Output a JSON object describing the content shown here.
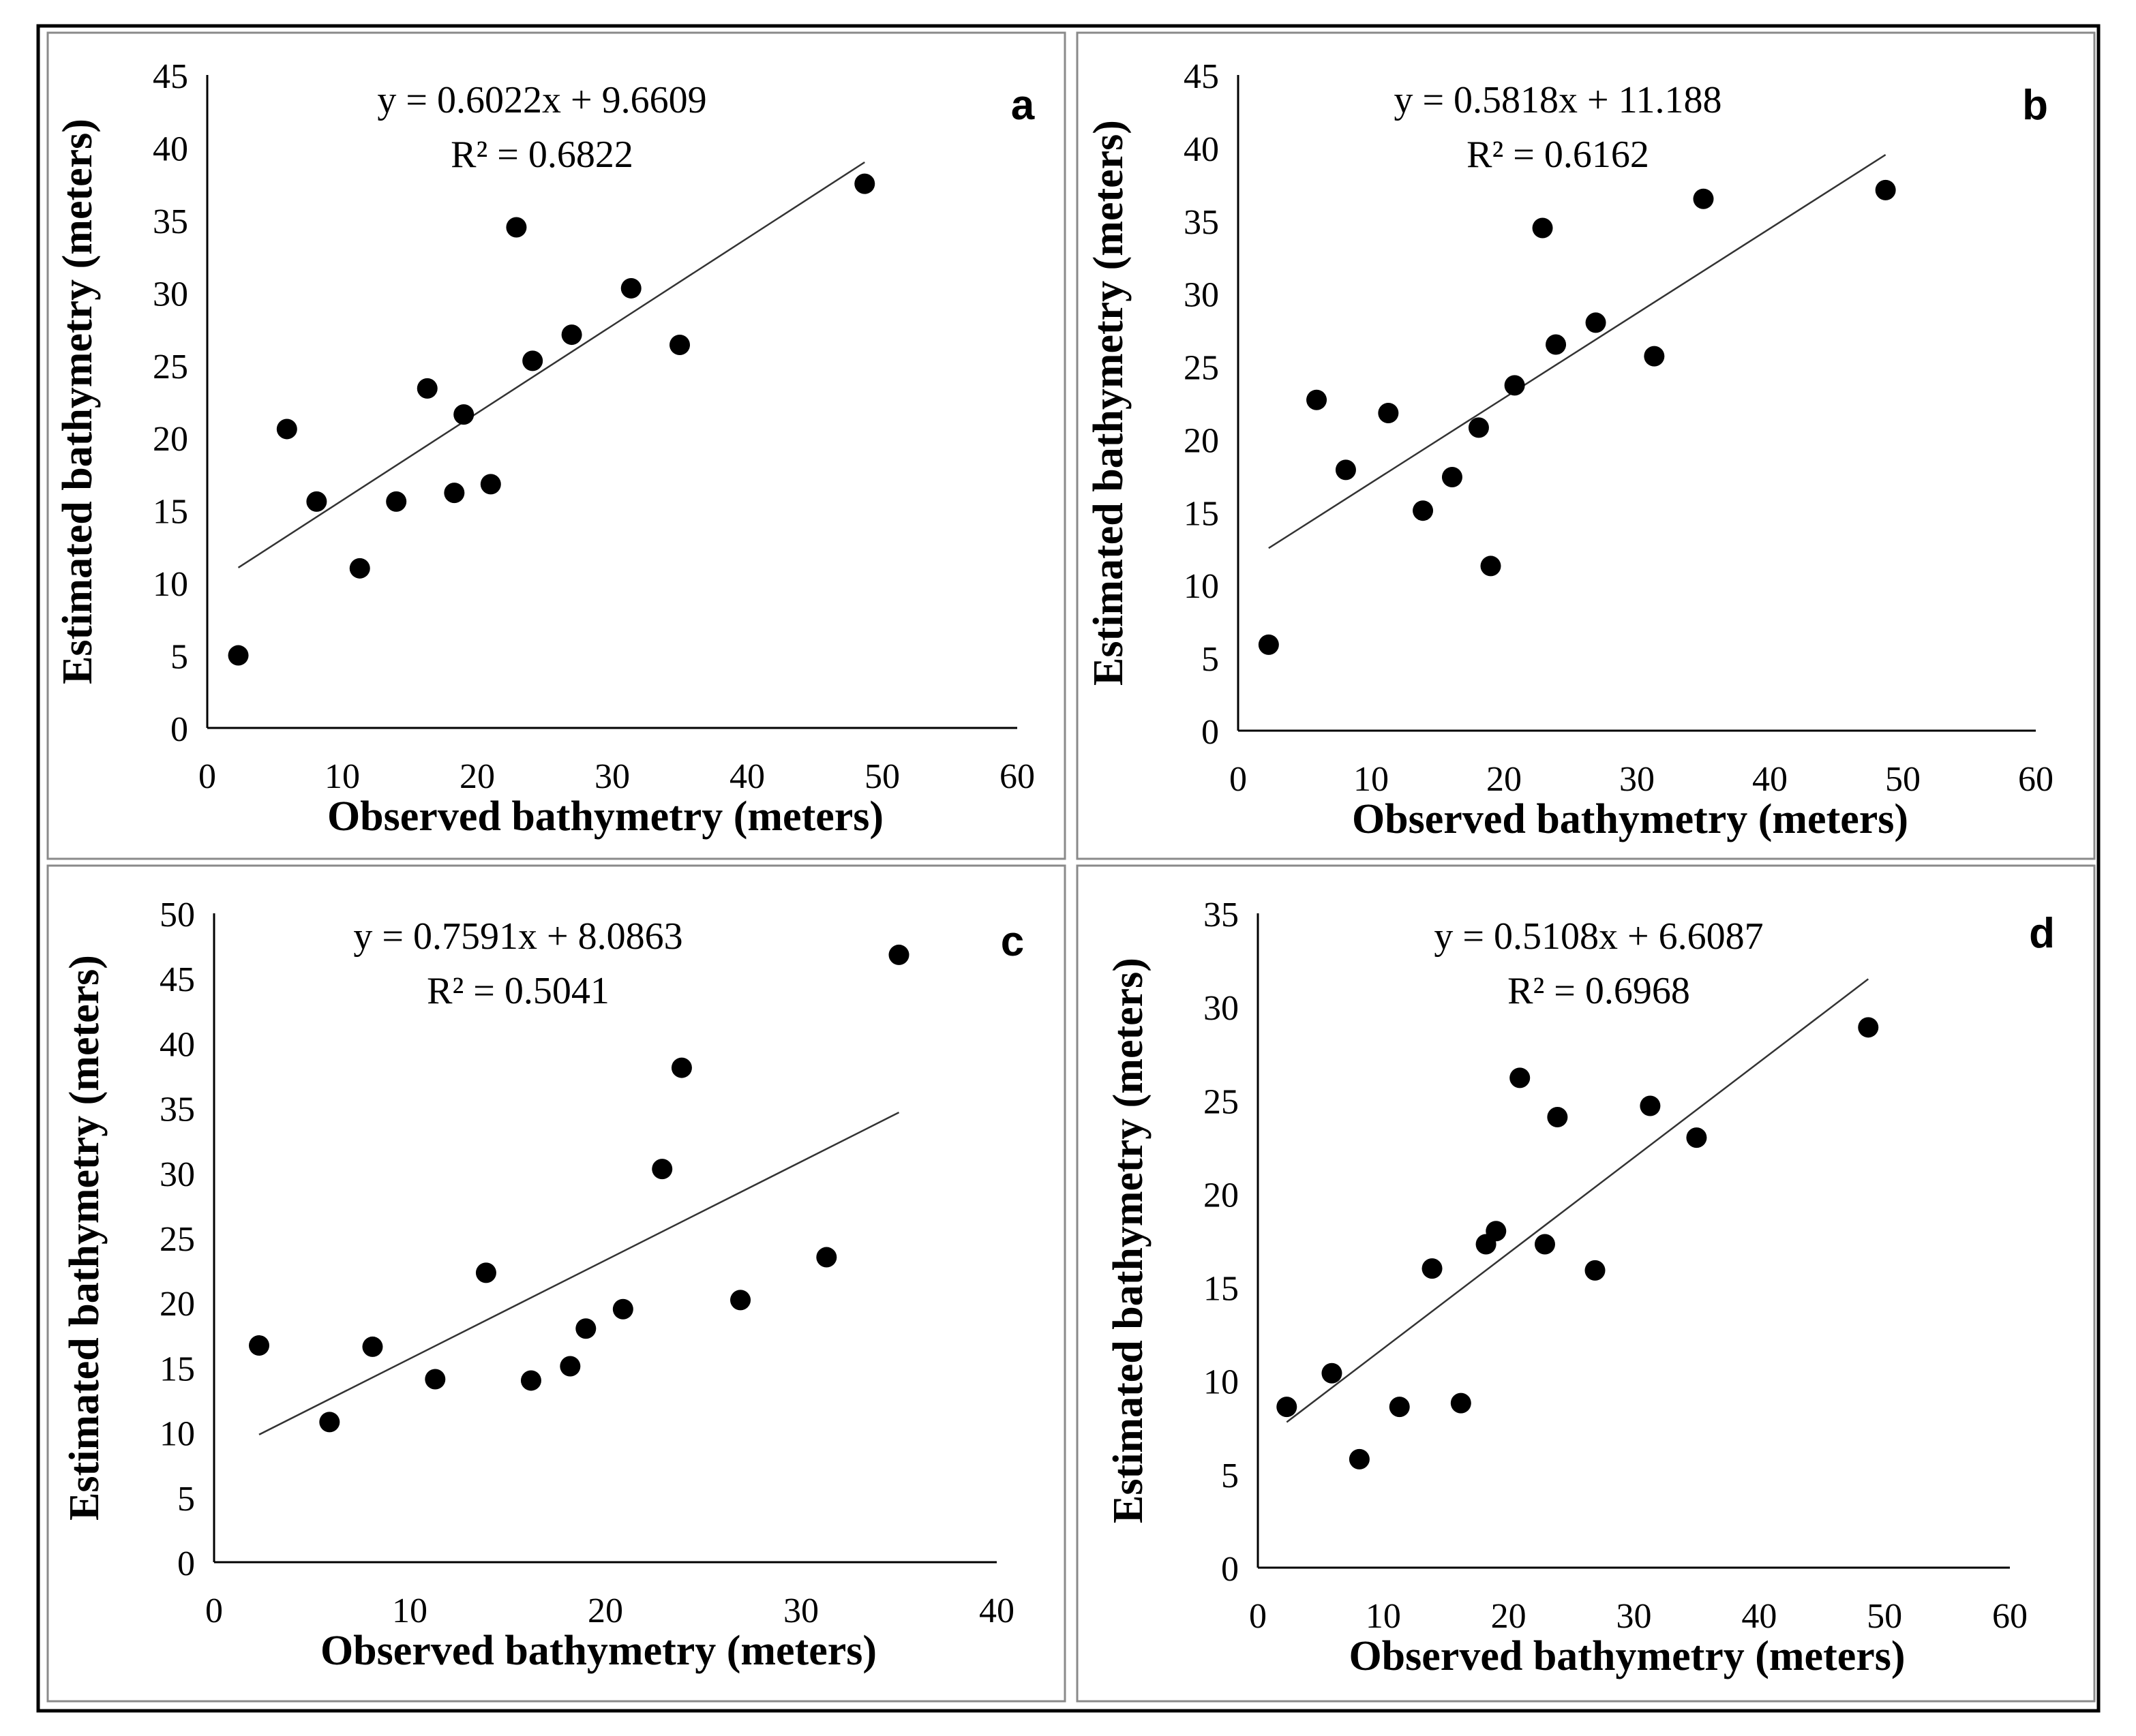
{
  "figure": {
    "panels": [
      "a",
      "b",
      "c",
      "d"
    ]
  },
  "chart_data": [
    {
      "panel": "a",
      "type": "scatter",
      "xlabel": "Observed bathymetry (meters)",
      "ylabel": "Estimated bathymetry (meters)",
      "xlim": [
        0,
        60
      ],
      "ylim": [
        0,
        45
      ],
      "xticks": [
        0,
        10,
        20,
        30,
        40,
        50,
        60
      ],
      "yticks": [
        0,
        5,
        10,
        15,
        20,
        25,
        30,
        35,
        40,
        45
      ],
      "equation": "y = 0.6022x + 9.6609",
      "r2": "R² = 0.6822",
      "trendline": {
        "slope": 0.6022,
        "intercept": 9.6609,
        "x_range": [
          2.3,
          48.7
        ]
      },
      "points": [
        {
          "x": 2.3,
          "y": 5.0
        },
        {
          "x": 5.9,
          "y": 20.6
        },
        {
          "x": 8.1,
          "y": 15.6
        },
        {
          "x": 11.3,
          "y": 11.0
        },
        {
          "x": 14.0,
          "y": 15.6
        },
        {
          "x": 16.3,
          "y": 23.4
        },
        {
          "x": 18.3,
          "y": 16.2
        },
        {
          "x": 19.0,
          "y": 21.6
        },
        {
          "x": 21.0,
          "y": 16.8
        },
        {
          "x": 22.9,
          "y": 34.5
        },
        {
          "x": 24.1,
          "y": 25.3
        },
        {
          "x": 27.0,
          "y": 27.1
        },
        {
          "x": 31.4,
          "y": 30.3
        },
        {
          "x": 35.0,
          "y": 26.4
        },
        {
          "x": 48.7,
          "y": 37.5
        }
      ]
    },
    {
      "panel": "b",
      "type": "scatter",
      "xlabel": "Observed bathymetry (meters)",
      "ylabel": "Estimated bathymetry (meters)",
      "xlim": [
        0,
        60
      ],
      "ylim": [
        0,
        45
      ],
      "xticks": [
        0,
        10,
        20,
        30,
        40,
        50,
        60
      ],
      "yticks": [
        0,
        5,
        10,
        15,
        20,
        25,
        30,
        35,
        40,
        45
      ],
      "equation": "y = 0.5818x + 11.188",
      "r2": "R² = 0.6162",
      "trendline": {
        "slope": 0.5818,
        "intercept": 11.188,
        "x_range": [
          2.3,
          48.7
        ]
      },
      "points": [
        {
          "x": 2.3,
          "y": 5.9
        },
        {
          "x": 5.9,
          "y": 22.7
        },
        {
          "x": 8.1,
          "y": 17.9
        },
        {
          "x": 11.3,
          "y": 21.8
        },
        {
          "x": 13.9,
          "y": 15.1
        },
        {
          "x": 16.1,
          "y": 17.4
        },
        {
          "x": 18.1,
          "y": 20.8
        },
        {
          "x": 19.0,
          "y": 11.3
        },
        {
          "x": 20.8,
          "y": 23.7
        },
        {
          "x": 22.9,
          "y": 34.5
        },
        {
          "x": 23.9,
          "y": 26.5
        },
        {
          "x": 26.9,
          "y": 28.0
        },
        {
          "x": 31.3,
          "y": 25.7
        },
        {
          "x": 35.0,
          "y": 36.5
        },
        {
          "x": 48.7,
          "y": 37.1
        }
      ]
    },
    {
      "panel": "c",
      "type": "scatter",
      "xlabel": "Observed bathymetry (meters)",
      "ylabel": "Estimated bathymetry (meters)",
      "xlim": [
        0,
        40
      ],
      "ylim": [
        0,
        50
      ],
      "xticks": [
        0,
        10,
        20,
        30,
        40
      ],
      "yticks": [
        0,
        5,
        10,
        15,
        20,
        25,
        30,
        35,
        40,
        45,
        50
      ],
      "equation": "y = 0.7591x + 8.0863",
      "r2": "R² = 0.5041",
      "trendline": {
        "slope": 0.7591,
        "intercept": 8.0863,
        "x_range": [
          2.3,
          35.0
        ]
      },
      "points": [
        {
          "x": 2.3,
          "y": 16.7
        },
        {
          "x": 5.9,
          "y": 10.8
        },
        {
          "x": 8.1,
          "y": 16.6
        },
        {
          "x": 11.3,
          "y": 14.1
        },
        {
          "x": 13.9,
          "y": 22.3
        },
        {
          "x": 16.2,
          "y": 14.0
        },
        {
          "x": 18.2,
          "y": 15.1
        },
        {
          "x": 19.0,
          "y": 18.0
        },
        {
          "x": 20.9,
          "y": 19.5
        },
        {
          "x": 22.9,
          "y": 30.3
        },
        {
          "x": 23.9,
          "y": 38.1
        },
        {
          "x": 26.9,
          "y": 20.2
        },
        {
          "x": 31.3,
          "y": 23.5
        },
        {
          "x": 35.0,
          "y": 46.8
        }
      ]
    },
    {
      "panel": "d",
      "type": "scatter",
      "xlabel": "Observed bathymetry (meters)",
      "ylabel": "Estimated bathymetry (meters)",
      "xlim": [
        0,
        60
      ],
      "ylim": [
        0,
        35
      ],
      "xticks": [
        0,
        10,
        20,
        30,
        40,
        50,
        60
      ],
      "yticks": [
        0,
        5,
        10,
        15,
        20,
        25,
        30,
        35
      ],
      "equation": "y = 0.5108x + 6.6087",
      "r2": "R² = 0.6968",
      "trendline": {
        "slope": 0.5108,
        "intercept": 6.6087,
        "x_range": [
          2.3,
          48.7
        ]
      },
      "points": [
        {
          "x": 2.3,
          "y": 8.6
        },
        {
          "x": 5.9,
          "y": 10.4
        },
        {
          "x": 8.1,
          "y": 5.8
        },
        {
          "x": 11.3,
          "y": 8.6
        },
        {
          "x": 13.9,
          "y": 16.0
        },
        {
          "x": 16.2,
          "y": 8.8
        },
        {
          "x": 18.2,
          "y": 17.3
        },
        {
          "x": 19.0,
          "y": 18.0
        },
        {
          "x": 20.9,
          "y": 26.2
        },
        {
          "x": 22.9,
          "y": 17.3
        },
        {
          "x": 23.9,
          "y": 24.1
        },
        {
          "x": 26.9,
          "y": 15.9
        },
        {
          "x": 31.3,
          "y": 24.7
        },
        {
          "x": 35.0,
          "y": 23.0
        },
        {
          "x": 48.7,
          "y": 28.9
        }
      ]
    }
  ]
}
